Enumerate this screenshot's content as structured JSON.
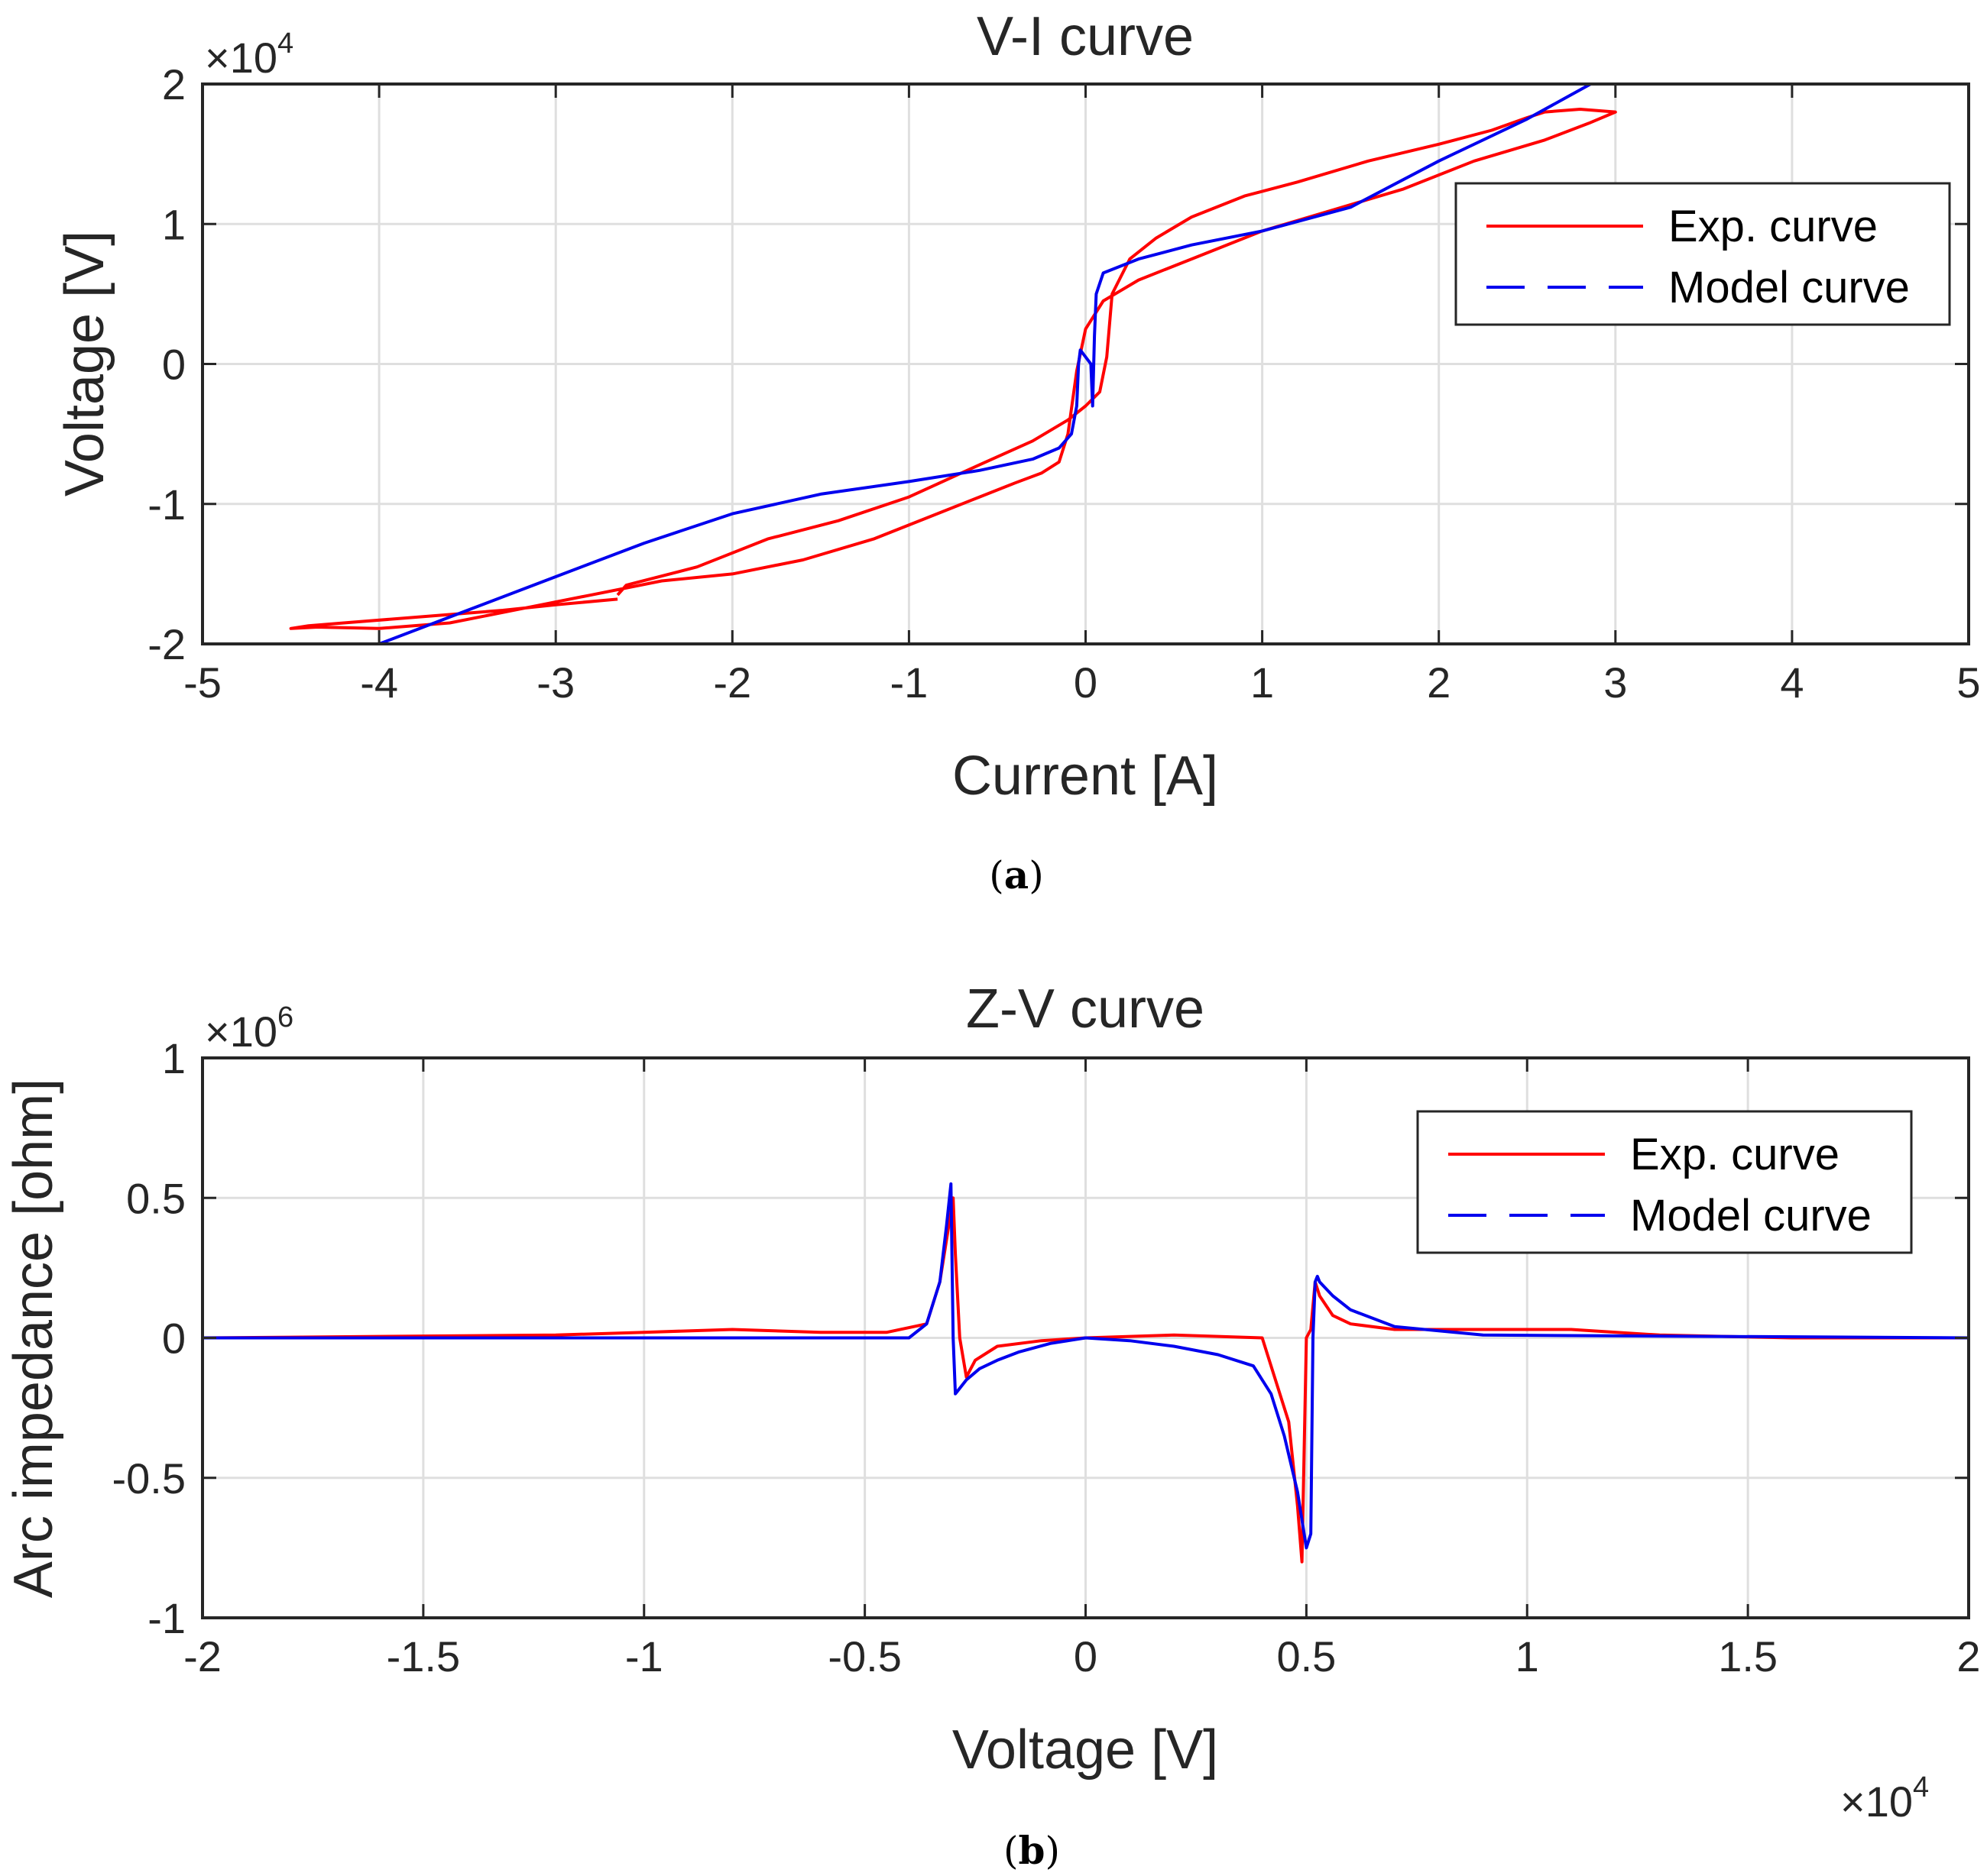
{
  "chart_data": [
    {
      "type": "line",
      "title": "V-I curve",
      "xlabel": "Current [A]",
      "ylabel": "Voltage [V]",
      "xlim": [
        -5,
        5
      ],
      "ylim": [
        -2,
        2
      ],
      "x_ticks": [
        "-5",
        "-4",
        "-3",
        "-2",
        "-1",
        "0",
        "1",
        "2",
        "3",
        "4",
        "5"
      ],
      "y_ticks": [
        "2",
        "1",
        "0",
        "-1",
        "-2"
      ],
      "y_multiplier": {
        "base": "×10",
        "exp": "4"
      },
      "grid": true,
      "legend_position": "top-right",
      "caption": "a",
      "series": [
        {
          "name": "Exp. curve",
          "color": "#ff0000",
          "x": [
            -2.65,
            -3.0,
            -3.3,
            -3.6,
            -3.9,
            -4.2,
            -4.4,
            -4.5,
            -4.35,
            -4.0,
            -3.6,
            -3.2,
            -2.8,
            -2.4,
            -2.0,
            -1.6,
            -1.2,
            -0.9,
            -0.6,
            -0.4,
            -0.25,
            -0.15,
            -0.1,
            -0.05,
            0.0,
            0.1,
            0.3,
            0.6,
            1.0,
            1.4,
            1.8,
            2.2,
            2.6,
            2.85,
            3.0,
            2.8,
            2.6,
            2.5,
            2.3,
            2.0,
            1.6,
            1.2,
            0.9,
            0.6,
            0.4,
            0.25,
            0.15,
            0.12,
            0.08,
            0.0,
            -0.1,
            -0.3,
            -0.6,
            -1.0,
            -1.4,
            -1.8,
            -2.2,
            -2.6,
            -2.65
          ],
          "y": [
            -1.68,
            -1.72,
            -1.76,
            -1.79,
            -1.82,
            -1.85,
            -1.87,
            -1.89,
            -1.88,
            -1.89,
            -1.85,
            -1.75,
            -1.65,
            -1.55,
            -1.5,
            -1.4,
            -1.25,
            -1.1,
            -0.95,
            -0.85,
            -0.78,
            -0.7,
            -0.5,
            -0.05,
            0.25,
            0.45,
            0.6,
            0.75,
            0.95,
            1.1,
            1.25,
            1.45,
            1.6,
            1.72,
            1.8,
            1.82,
            1.8,
            1.76,
            1.67,
            1.57,
            1.45,
            1.3,
            1.2,
            1.05,
            0.9,
            0.75,
            0.5,
            0.05,
            -0.2,
            -0.3,
            -0.4,
            -0.55,
            -0.72,
            -0.95,
            -1.12,
            -1.25,
            -1.45,
            -1.58,
            -1.65
          ]
        },
        {
          "name": "Model curve",
          "color": "#0000ee",
          "x": [
            -4.0,
            -3.5,
            -3.0,
            -2.5,
            -2.0,
            -1.5,
            -1.0,
            -0.6,
            -0.3,
            -0.15,
            -0.08,
            -0.05,
            -0.04,
            -0.03,
            0.0,
            0.03,
            0.04,
            0.05,
            0.06,
            0.1,
            0.3,
            0.6,
            1.0,
            1.5,
            2.0,
            2.5,
            2.86
          ],
          "y": [
            -2.0,
            -1.76,
            -1.52,
            -1.28,
            -1.07,
            -0.93,
            -0.84,
            -0.76,
            -0.68,
            -0.6,
            -0.5,
            -0.3,
            0.0,
            0.1,
            0.05,
            0.0,
            -0.3,
            0.2,
            0.5,
            0.65,
            0.75,
            0.85,
            0.95,
            1.12,
            1.45,
            1.75,
            2.0
          ]
        }
      ]
    },
    {
      "type": "line",
      "title": "Z-V curve",
      "xlabel": "Voltage [V]",
      "ylabel": "Arc impedance [ohm]",
      "xlim": [
        -2,
        2
      ],
      "ylim": [
        -1,
        1
      ],
      "x_ticks": [
        "-2",
        "-1.5",
        "-1",
        "-0.5",
        "0",
        "0.5",
        "1",
        "1.5",
        "2"
      ],
      "y_ticks": [
        "1",
        "0.5",
        "0",
        "-0.5",
        "-1"
      ],
      "y_multiplier": {
        "base": "×10",
        "exp": "6"
      },
      "x_multiplier": {
        "base": "×10",
        "exp": "4"
      },
      "grid": true,
      "legend_position": "top-right",
      "caption": "b",
      "series": [
        {
          "name": "Exp. curve",
          "color": "#ff0000",
          "x": [
            -2.0,
            -1.2,
            -1.0,
            -0.8,
            -0.6,
            -0.45,
            -0.36,
            -0.33,
            -0.31,
            -0.3,
            -0.295,
            -0.285,
            -0.27,
            -0.25,
            -0.2,
            -0.1,
            0.0,
            0.2,
            0.4,
            0.46,
            0.48,
            0.49,
            0.5,
            0.51,
            0.52,
            0.53,
            0.56,
            0.6,
            0.7,
            0.9,
            1.1,
            1.3,
            1.6,
            2.0
          ],
          "y": [
            0.0,
            0.01,
            0.02,
            0.03,
            0.02,
            0.02,
            0.05,
            0.2,
            0.4,
            0.5,
            0.3,
            0.0,
            -0.14,
            -0.08,
            -0.03,
            -0.01,
            0.0,
            0.01,
            0.0,
            -0.3,
            -0.6,
            -0.8,
            0.0,
            0.03,
            0.2,
            0.15,
            0.08,
            0.05,
            0.03,
            0.03,
            0.03,
            0.01,
            0.0,
            0.0
          ]
        },
        {
          "name": "Model curve",
          "color": "#0000ee",
          "x": [
            -2.0,
            -0.4,
            -0.36,
            -0.33,
            -0.315,
            -0.305,
            -0.3,
            -0.295,
            -0.29,
            -0.27,
            -0.24,
            -0.2,
            -0.15,
            -0.08,
            0.0,
            0.1,
            0.2,
            0.3,
            0.38,
            0.42,
            0.45,
            0.48,
            0.5,
            0.51,
            0.515,
            0.52,
            0.525,
            0.53,
            0.56,
            0.6,
            0.7,
            0.9,
            2.0
          ],
          "y": [
            0.0,
            0.0,
            0.05,
            0.2,
            0.4,
            0.55,
            0.0,
            -0.2,
            -0.19,
            -0.15,
            -0.11,
            -0.08,
            -0.05,
            -0.02,
            0.0,
            -0.01,
            -0.03,
            -0.06,
            -0.1,
            -0.2,
            -0.35,
            -0.55,
            -0.75,
            -0.7,
            0.0,
            0.2,
            0.22,
            0.2,
            0.15,
            0.1,
            0.04,
            0.01,
            0.0
          ]
        }
      ]
    }
  ]
}
